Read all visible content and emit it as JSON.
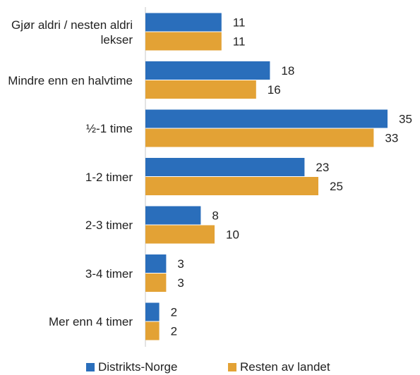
{
  "chart_data": {
    "type": "barh",
    "categories": [
      "Gjør aldri / nesten aldri lekser",
      "Mindre enn en halvtime",
      "½-1 time",
      "1-2 timer",
      "2-3 timer",
      "3-4 timer",
      "Mer enn 4 timer"
    ],
    "series": [
      {
        "name": "Distrikts-Norge",
        "color": "#2a6ebb",
        "values": [
          11,
          18,
          35,
          23,
          8,
          3,
          2
        ]
      },
      {
        "name": "Resten av landet",
        "color": "#e3a235",
        "values": [
          11,
          16,
          33,
          25,
          10,
          3,
          2
        ]
      }
    ],
    "xlim": [
      0,
      35
    ],
    "legend": "bottom"
  }
}
